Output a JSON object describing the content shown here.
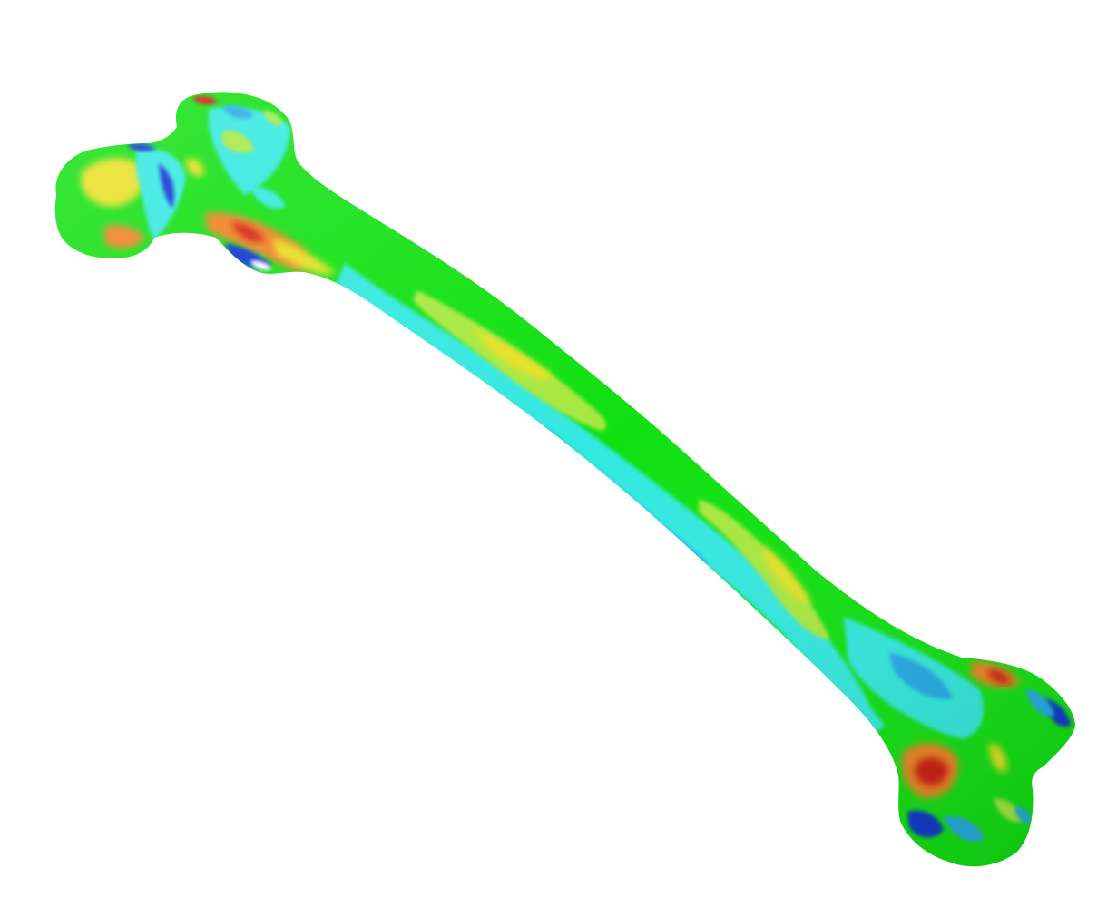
{
  "scene": {
    "background_color": "#ffffff",
    "object": "femur-bone-3d-render",
    "colormap": {
      "base": "#10e010",
      "low_extreme": "#1030d0",
      "low": "#20a8e8",
      "low_mid": "#30e8e0",
      "high_mid": "#a8e840",
      "high": "#e8e020",
      "very_high": "#f08020",
      "extreme": "#d01810",
      "specular": "#ffffff"
    }
  }
}
